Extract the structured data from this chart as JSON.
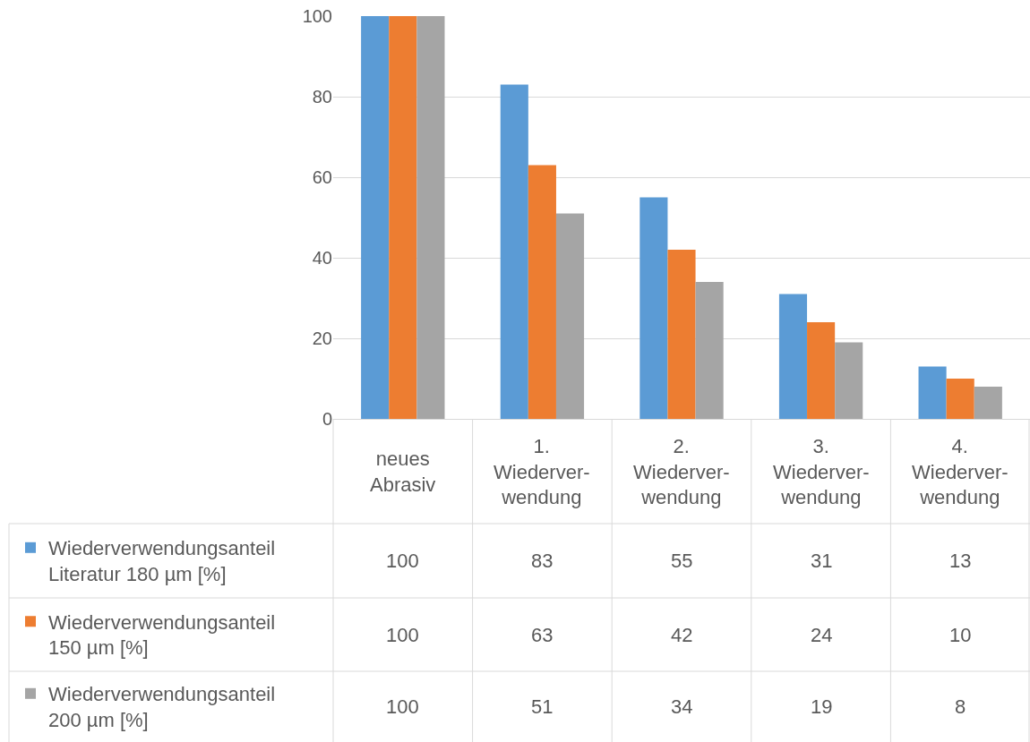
{
  "chart_data": {
    "type": "bar",
    "categories": [
      "neues\nAbrasiv",
      "1.\nWiederver-\nwendung",
      "2.\nWiederver-\nwendung",
      "3.\nWiederver-\nwendung",
      "4.\nWiederver-\nwendung"
    ],
    "series": [
      {
        "name": "Wiederverwendungsanteil\nLiteratur 180 µm [%]",
        "color": "#5b9bd5",
        "values": [
          100,
          83,
          55,
          31,
          13
        ]
      },
      {
        "name": "Wiederverwendungsanteil\n150 µm [%]",
        "color": "#ed7d31",
        "values": [
          100,
          63,
          42,
          24,
          10
        ]
      },
      {
        "name": "Wiederverwendungsanteil\n200 µm [%]",
        "color": "#a5a5a5",
        "values": [
          100,
          51,
          34,
          19,
          8
        ]
      }
    ],
    "ylim": [
      0,
      100
    ],
    "yticks": [
      0,
      20,
      40,
      60,
      80,
      100
    ],
    "grid": "y",
    "legend": "bottom left",
    "data_labels": true
  }
}
